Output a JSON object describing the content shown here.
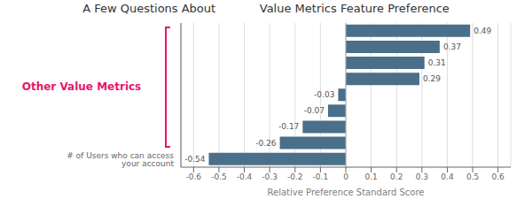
{
  "chart_data": {
    "type": "bar",
    "orientation": "horizontal",
    "title": "A Few Questions About            Value Metrics Feature Preference",
    "xlabel": "Relative Preference Standard Score",
    "categories": [
      "# of Users who can access your account",
      null,
      null,
      null,
      null,
      null,
      null,
      null,
      null
    ],
    "values": [
      -0.54,
      -0.26,
      -0.17,
      -0.07,
      -0.03,
      0.29,
      0.31,
      0.37,
      0.49
    ],
    "color": "#4a6f8a",
    "xlim": [
      -0.65,
      0.65
    ],
    "xticks": [
      -0.6,
      -0.5,
      -0.4,
      -0.3,
      -0.2,
      -0.1,
      0,
      0.1,
      0.2,
      0.3,
      0.4,
      0.5,
      0.6
    ],
    "grid": true,
    "data_labels": true,
    "annotations": [
      {
        "text": "Other Value Metrics",
        "color": "#e8156d"
      }
    ]
  }
}
